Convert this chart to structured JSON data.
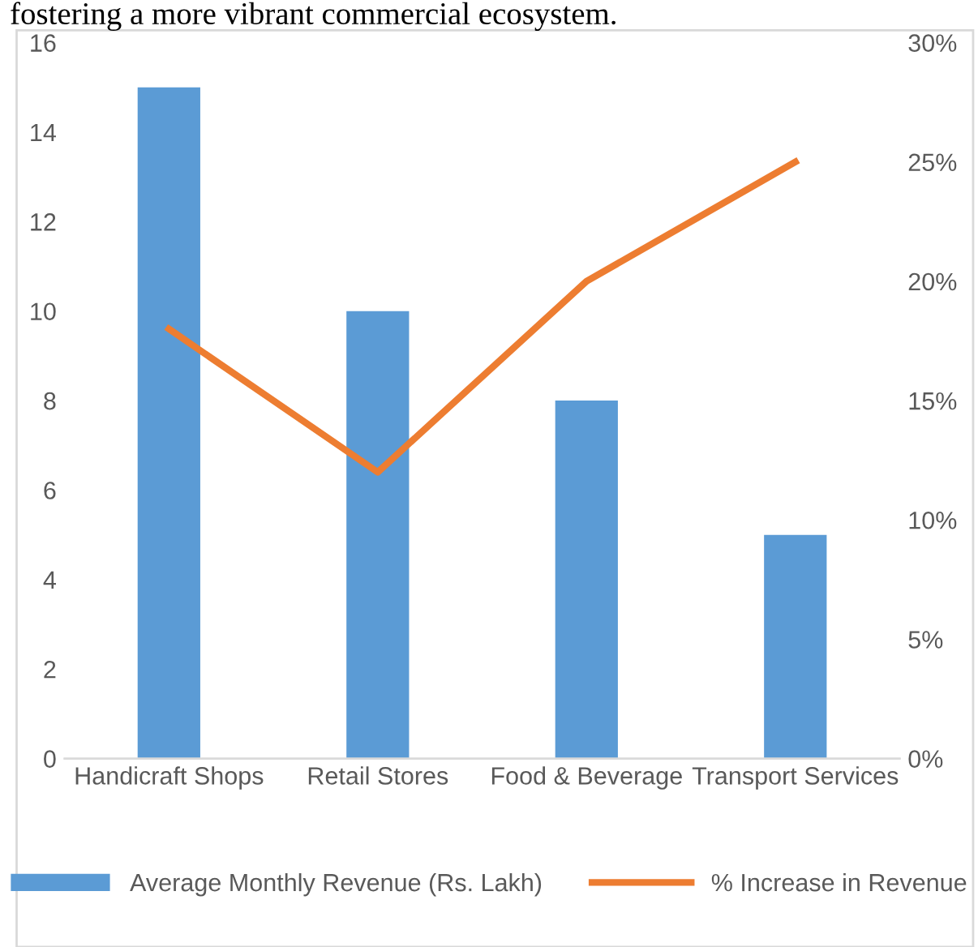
{
  "chart_data": {
    "type": "bar",
    "annotations": [
      "fostering a more vibrant commercial ecosystem."
    ],
    "categories": [
      "Handicraft Shops",
      "Retail Stores",
      "Food & Beverage",
      "Transport Services"
    ],
    "series": [
      {
        "name": "Average Monthly Revenue (Rs. Lakh)",
        "color": "#5b9bd5",
        "values": [
          15,
          10,
          8,
          5
        ]
      },
      {
        "name": "% Increase in Revenue",
        "type": "line",
        "axis": "y2",
        "color": "#ed7d31",
        "values": [
          18,
          12,
          20,
          25
        ]
      }
    ],
    "ylim": [
      0,
      16
    ],
    "yticks": [
      0,
      2,
      4,
      6,
      8,
      10,
      12,
      14,
      16
    ],
    "y2lim": [
      0,
      30
    ],
    "y2ticks": [
      {
        "value": 0,
        "label": "0%"
      },
      {
        "value": 5,
        "label": "5%"
      },
      {
        "value": 10,
        "label": "10%"
      },
      {
        "value": 15,
        "label": "15%"
      },
      {
        "value": 20,
        "label": "20%"
      },
      {
        "value": 25,
        "label": "25%"
      },
      {
        "value": 30,
        "label": "30%"
      }
    ],
    "grid": false,
    "legend": "bottom",
    "marker": "none",
    "line_style": "solid"
  }
}
